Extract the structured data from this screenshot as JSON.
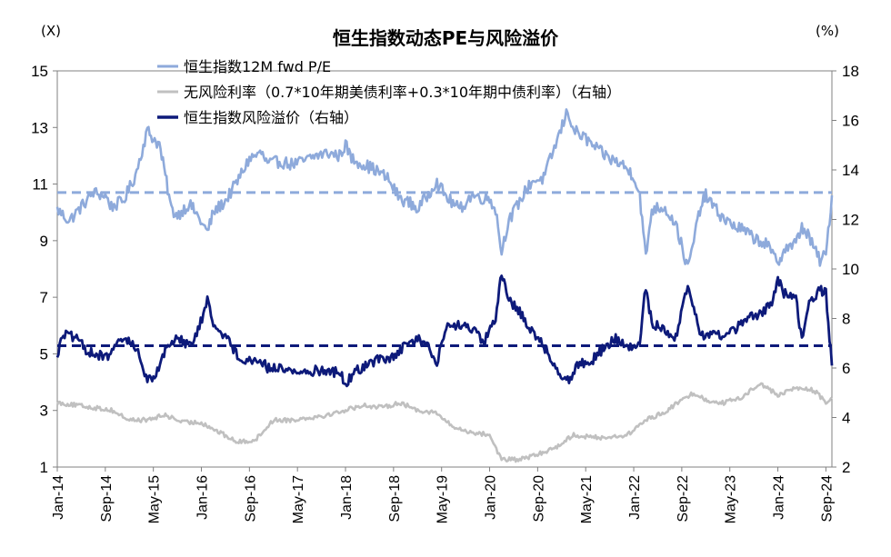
{
  "chart_data": {
    "type": "line",
    "title": "恒生指数动态PE与风险溢价",
    "left_unit": "(X)",
    "right_unit": "(%)",
    "left_axis": {
      "ylim": [
        1,
        15
      ],
      "ticks": [
        "1",
        "3",
        "5",
        "7",
        "9",
        "11",
        "13",
        "15"
      ]
    },
    "right_axis": {
      "ylim": [
        2,
        18
      ],
      "ticks": [
        "2",
        "4",
        "6",
        "8",
        "10",
        "12",
        "14",
        "16",
        "18"
      ]
    },
    "x_range": [
      "2014-01",
      "2024-10"
    ],
    "x_ticks": [
      "Jan-14",
      "Sep-14",
      "May-15",
      "Jan-16",
      "Sep-16",
      "May-17",
      "Jan-18",
      "Sep-18",
      "May-19",
      "Jan-20",
      "Sep-20",
      "May-21",
      "Jan-22",
      "Sep-22",
      "May-23",
      "Jan-24",
      "Sep-24"
    ],
    "legend_position": "top-left",
    "grid": false,
    "series": [
      {
        "name": "恒生指数12M fwd P/E",
        "axis": "left",
        "color": "#8eaadb",
        "mean": 10.7,
        "points": [
          [
            "2014-01",
            10.1
          ],
          [
            "2014-03",
            9.7
          ],
          [
            "2014-05",
            10.2
          ],
          [
            "2014-07",
            10.7
          ],
          [
            "2014-09",
            10.6
          ],
          [
            "2014-10",
            10.2
          ],
          [
            "2014-12",
            10.4
          ],
          [
            "2015-02",
            11.3
          ],
          [
            "2015-04",
            12.9
          ],
          [
            "2015-05",
            12.6
          ],
          [
            "2015-06",
            12.4
          ],
          [
            "2015-07",
            11.3
          ],
          [
            "2015-08",
            10.1
          ],
          [
            "2015-09",
            9.9
          ],
          [
            "2015-11",
            10.3
          ],
          [
            "2015-12",
            10.0
          ],
          [
            "2016-02",
            9.3
          ],
          [
            "2016-03",
            10.0
          ],
          [
            "2016-05",
            10.4
          ],
          [
            "2016-07",
            11.1
          ],
          [
            "2016-09",
            11.9
          ],
          [
            "2016-11",
            12.1
          ],
          [
            "2016-12",
            11.7
          ],
          [
            "2017-02",
            11.8
          ],
          [
            "2017-04",
            11.7
          ],
          [
            "2017-06",
            11.8
          ],
          [
            "2017-08",
            12.0
          ],
          [
            "2017-10",
            12.1
          ],
          [
            "2017-12",
            12.0
          ],
          [
            "2018-01",
            12.4
          ],
          [
            "2018-02",
            11.9
          ],
          [
            "2018-04",
            11.7
          ],
          [
            "2018-06",
            11.5
          ],
          [
            "2018-08",
            11.2
          ],
          [
            "2018-10",
            10.5
          ],
          [
            "2018-12",
            10.3
          ],
          [
            "2019-01",
            10.1
          ],
          [
            "2019-03",
            10.7
          ],
          [
            "2019-04",
            11.1
          ],
          [
            "2019-06",
            10.5
          ],
          [
            "2019-08",
            10.1
          ],
          [
            "2019-10",
            10.6
          ],
          [
            "2019-12",
            10.5
          ],
          [
            "2020-01",
            10.5
          ],
          [
            "2020-02",
            10.1
          ],
          [
            "2020-03",
            8.6
          ],
          [
            "2020-04",
            9.6
          ],
          [
            "2020-06",
            10.4
          ],
          [
            "2020-08",
            11.1
          ],
          [
            "2020-10",
            11.2
          ],
          [
            "2020-12",
            12.4
          ],
          [
            "2021-02",
            13.6
          ],
          [
            "2021-03",
            12.9
          ],
          [
            "2021-05",
            12.6
          ],
          [
            "2021-07",
            12.2
          ],
          [
            "2021-09",
            11.9
          ],
          [
            "2021-11",
            11.7
          ],
          [
            "2021-12",
            11.5
          ],
          [
            "2022-01",
            11.3
          ],
          [
            "2022-02",
            10.6
          ],
          [
            "2022-03",
            8.4
          ],
          [
            "2022-04",
            10.1
          ],
          [
            "2022-06",
            10.2
          ],
          [
            "2022-08",
            9.6
          ],
          [
            "2022-10",
            8.0
          ],
          [
            "2022-11",
            9.0
          ],
          [
            "2022-12",
            10.1
          ],
          [
            "2023-01",
            10.6
          ],
          [
            "2023-03",
            10.0
          ],
          [
            "2023-05",
            9.6
          ],
          [
            "2023-07",
            9.4
          ],
          [
            "2023-09",
            9.1
          ],
          [
            "2023-11",
            8.9
          ],
          [
            "2024-01",
            8.2
          ],
          [
            "2024-02",
            8.7
          ],
          [
            "2024-04",
            8.9
          ],
          [
            "2024-05",
            9.5
          ],
          [
            "2024-06",
            9.2
          ],
          [
            "2024-08",
            8.3
          ],
          [
            "2024-09",
            8.5
          ],
          [
            "2024-10",
            10.6
          ]
        ]
      },
      {
        "name": "无风险利率（0.7*10年期美债利率+0.3*10年期中债利率）（右轴）",
        "axis": "right",
        "color": "#c0c0c0",
        "points": [
          [
            "2014-01",
            4.6
          ],
          [
            "2014-04",
            4.5
          ],
          [
            "2014-07",
            4.4
          ],
          [
            "2014-10",
            4.3
          ],
          [
            "2015-01",
            3.9
          ],
          [
            "2015-04",
            3.9
          ],
          [
            "2015-07",
            4.1
          ],
          [
            "2015-10",
            3.8
          ],
          [
            "2016-01",
            3.8
          ],
          [
            "2016-04",
            3.4
          ],
          [
            "2016-07",
            3.0
          ],
          [
            "2016-10",
            3.1
          ],
          [
            "2017-01",
            3.9
          ],
          [
            "2017-04",
            3.9
          ],
          [
            "2017-07",
            4.0
          ],
          [
            "2017-10",
            4.1
          ],
          [
            "2018-01",
            4.3
          ],
          [
            "2018-04",
            4.5
          ],
          [
            "2018-07",
            4.4
          ],
          [
            "2018-10",
            4.6
          ],
          [
            "2019-01",
            4.3
          ],
          [
            "2019-04",
            4.2
          ],
          [
            "2019-07",
            3.6
          ],
          [
            "2019-10",
            3.4
          ],
          [
            "2020-01",
            3.3
          ],
          [
            "2020-03",
            2.3
          ],
          [
            "2020-06",
            2.3
          ],
          [
            "2020-09",
            2.5
          ],
          [
            "2020-12",
            2.8
          ],
          [
            "2021-03",
            3.3
          ],
          [
            "2021-06",
            3.2
          ],
          [
            "2021-09",
            3.2
          ],
          [
            "2021-12",
            3.3
          ],
          [
            "2022-03",
            3.9
          ],
          [
            "2022-06",
            4.2
          ],
          [
            "2022-09",
            4.7
          ],
          [
            "2022-11",
            5.0
          ],
          [
            "2023-01",
            4.7
          ],
          [
            "2023-04",
            4.6
          ],
          [
            "2023-07",
            4.8
          ],
          [
            "2023-10",
            5.4
          ],
          [
            "2024-01",
            4.9
          ],
          [
            "2024-04",
            5.2
          ],
          [
            "2024-07",
            5.1
          ],
          [
            "2024-09",
            4.6
          ],
          [
            "2024-10",
            4.8
          ]
        ]
      },
      {
        "name": "恒生指数风险溢价（右轴）",
        "axis": "right",
        "color": "#0d1a7a",
        "mean": 6.9,
        "points": [
          [
            "2014-01",
            6.5
          ],
          [
            "2014-02",
            7.4
          ],
          [
            "2014-04",
            7.2
          ],
          [
            "2014-06",
            6.7
          ],
          [
            "2014-09",
            6.4
          ],
          [
            "2014-11",
            6.9
          ],
          [
            "2014-12",
            7.2
          ],
          [
            "2015-02",
            6.9
          ],
          [
            "2015-04",
            5.5
          ],
          [
            "2015-05",
            5.6
          ],
          [
            "2015-07",
            6.7
          ],
          [
            "2015-09",
            7.3
          ],
          [
            "2015-11",
            6.9
          ],
          [
            "2015-12",
            7.2
          ],
          [
            "2016-02",
            8.7
          ],
          [
            "2016-03",
            7.8
          ],
          [
            "2016-05",
            7.3
          ],
          [
            "2016-07",
            6.5
          ],
          [
            "2016-09",
            6.3
          ],
          [
            "2016-11",
            6.3
          ],
          [
            "2016-12",
            6.0
          ],
          [
            "2017-02",
            6.0
          ],
          [
            "2017-04",
            5.9
          ],
          [
            "2017-06",
            5.8
          ],
          [
            "2017-08",
            5.9
          ],
          [
            "2017-10",
            5.9
          ],
          [
            "2017-12",
            5.8
          ],
          [
            "2018-01",
            5.4
          ],
          [
            "2018-03",
            5.9
          ],
          [
            "2018-05",
            6.2
          ],
          [
            "2018-07",
            6.4
          ],
          [
            "2018-09",
            6.4
          ],
          [
            "2018-11",
            6.9
          ],
          [
            "2019-01",
            7.2
          ],
          [
            "2019-03",
            6.8
          ],
          [
            "2019-04",
            6.1
          ],
          [
            "2019-06",
            7.7
          ],
          [
            "2019-08",
            7.7
          ],
          [
            "2019-10",
            7.6
          ],
          [
            "2019-12",
            7.0
          ],
          [
            "2020-02",
            8.0
          ],
          [
            "2020-03",
            9.8
          ],
          [
            "2020-04",
            8.8
          ],
          [
            "2020-06",
            8.3
          ],
          [
            "2020-08",
            7.5
          ],
          [
            "2020-10",
            6.9
          ],
          [
            "2020-12",
            6.0
          ],
          [
            "2021-02",
            5.5
          ],
          [
            "2021-04",
            6.2
          ],
          [
            "2021-06",
            6.3
          ],
          [
            "2021-08",
            6.8
          ],
          [
            "2021-10",
            7.2
          ],
          [
            "2021-12",
            6.8
          ],
          [
            "2022-02",
            6.9
          ],
          [
            "2022-03",
            9.3
          ],
          [
            "2022-04",
            7.8
          ],
          [
            "2022-06",
            7.6
          ],
          [
            "2022-08",
            7.2
          ],
          [
            "2022-10",
            9.4
          ],
          [
            "2022-11",
            8.4
          ],
          [
            "2022-12",
            7.3
          ],
          [
            "2023-02",
            7.4
          ],
          [
            "2023-04",
            7.3
          ],
          [
            "2023-06",
            7.6
          ],
          [
            "2023-08",
            8.0
          ],
          [
            "2023-10",
            8.2
          ],
          [
            "2023-12",
            8.6
          ],
          [
            "2024-01",
            9.6
          ],
          [
            "2024-02",
            9.0
          ],
          [
            "2024-04",
            8.9
          ],
          [
            "2024-05",
            7.1
          ],
          [
            "2024-06",
            8.5
          ],
          [
            "2024-08",
            9.2
          ],
          [
            "2024-09",
            9.0
          ],
          [
            "2024-10",
            6.1
          ]
        ]
      }
    ]
  }
}
